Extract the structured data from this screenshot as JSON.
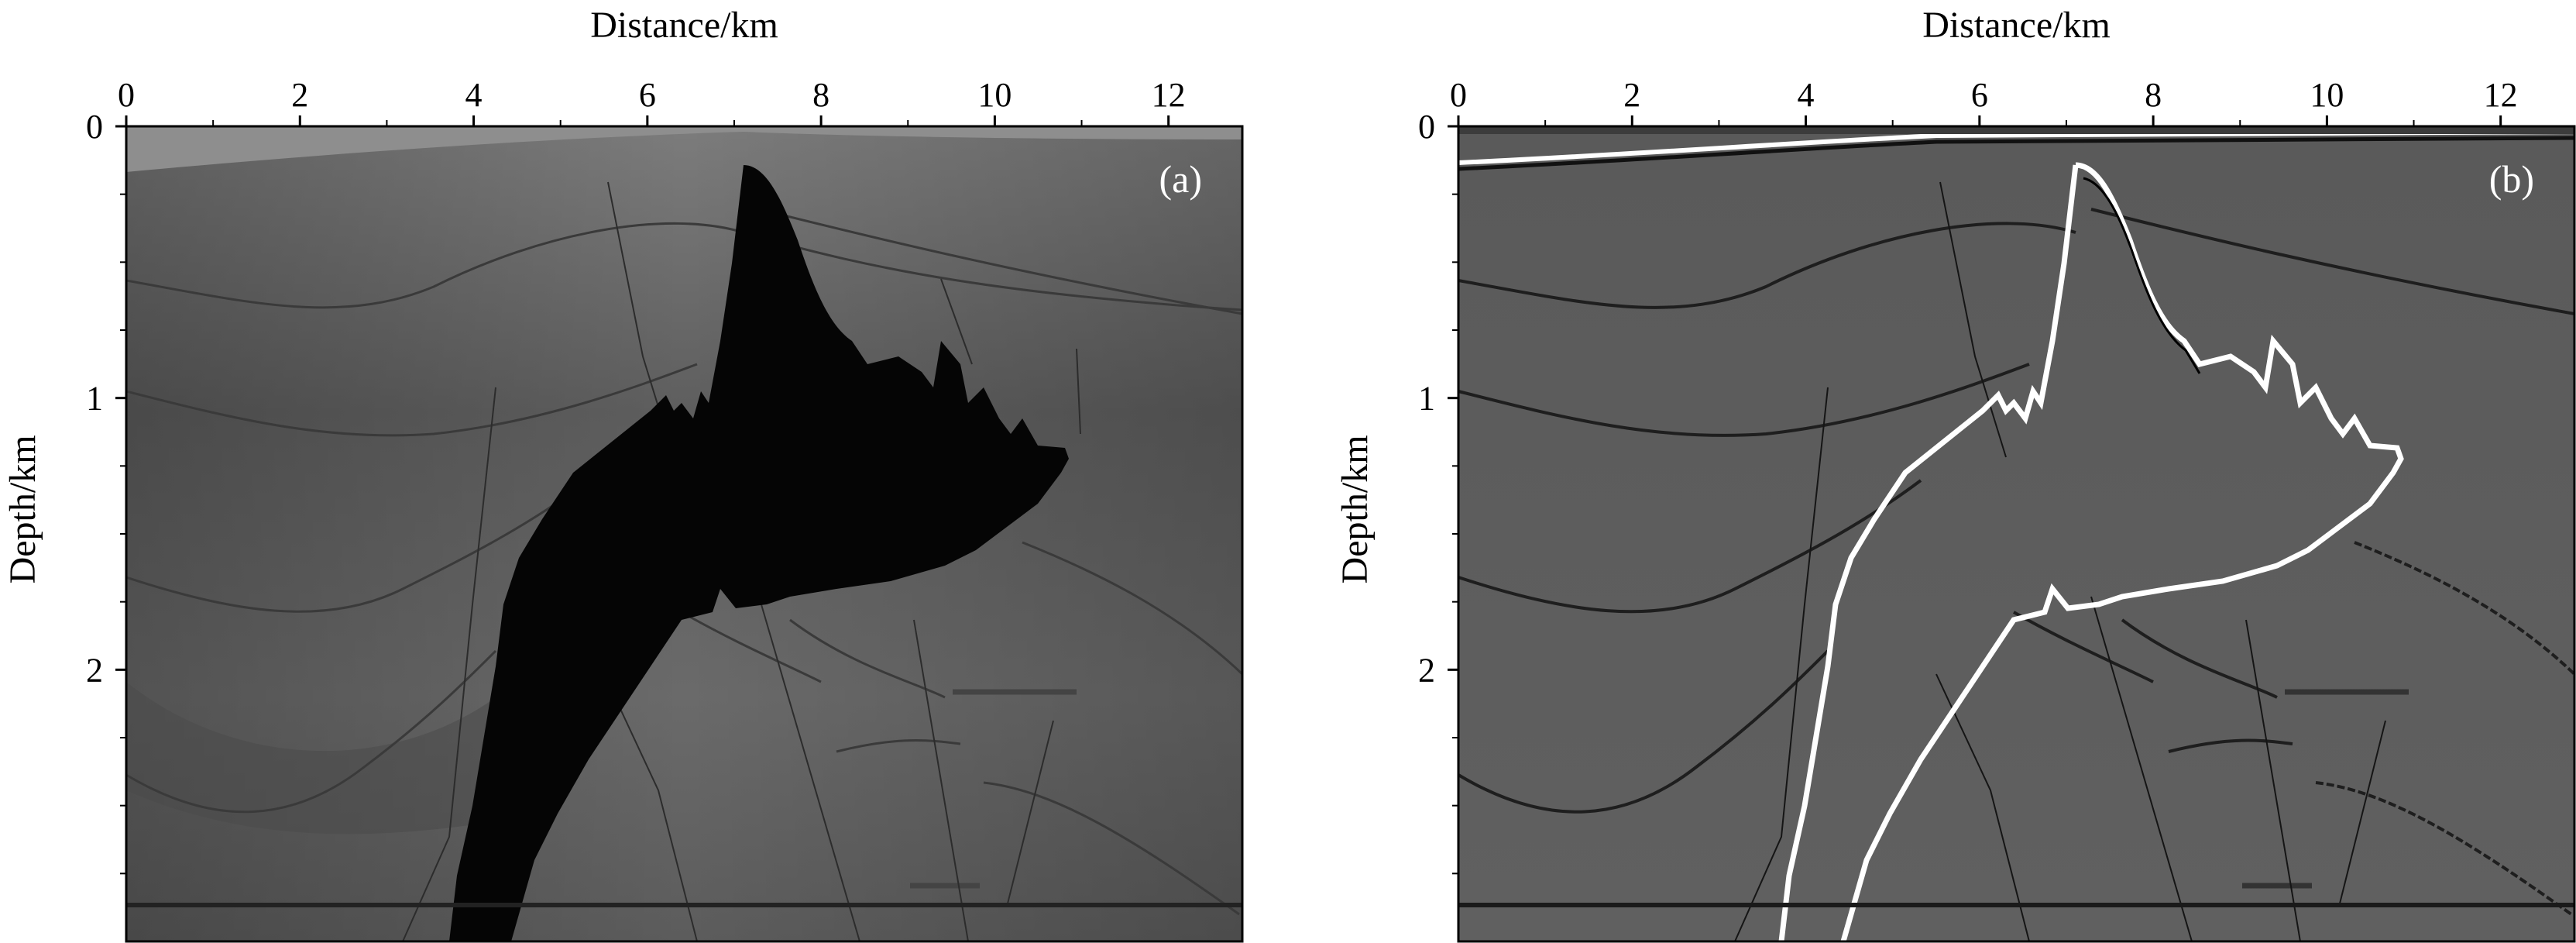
{
  "figure": {
    "panels": [
      {
        "id": "a",
        "label": "(a)",
        "xlabel": "Distance/km",
        "ylabel": "Depth/km",
        "x_ticks": [
          "0",
          "2",
          "4",
          "6",
          "8",
          "10",
          "12"
        ],
        "y_ticks": [
          "0",
          "1",
          "2"
        ],
        "xlim": [
          0,
          12.85
        ],
        "ylim": [
          3.0,
          0
        ],
        "image_kind": "velocity model (grayscale)"
      },
      {
        "id": "b",
        "label": "(b)",
        "xlabel": "Distance/km",
        "ylabel": "Depth/km",
        "x_ticks": [
          "0",
          "2",
          "4",
          "6",
          "8",
          "10",
          "12"
        ],
        "y_ticks": [
          "0",
          "1",
          "2"
        ],
        "xlim": [
          0,
          12.85
        ],
        "ylim": [
          3.0,
          0
        ],
        "image_kind": "migrated image / reflectivity (grayscale)"
      }
    ]
  },
  "colors": {
    "background": "#ffffff",
    "axis": "#000000",
    "salt": "#050505",
    "sediment_light": "#8a8a8a",
    "sediment_dark": "#505050"
  }
}
